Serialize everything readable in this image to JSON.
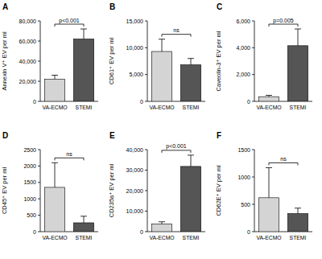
{
  "chart_data": [
    {
      "type": "bar",
      "title": "A",
      "y_label": "Annexin V⁺ EV per ml",
      "categories": [
        "VA-ECMO",
        "STEMI"
      ],
      "values": [
        22000,
        62000
      ],
      "errors": [
        4000,
        10000
      ],
      "colors": [
        "#d4d4d4",
        "#555555"
      ],
      "ylim": [
        0,
        80000
      ],
      "yticks": [
        0,
        {
          "value": 20000,
          "label": "20,000"
        },
        {
          "value": 40000,
          "label": "40,000"
        },
        {
          "value": 60000,
          "label": "60,000"
        },
        {
          "value": 80000,
          "label": "80,000"
        }
      ],
      "annotation": "p<0.001"
    },
    {
      "type": "bar",
      "title": "B",
      "y_label": "CD61⁺ EV per ml",
      "categories": [
        "VA-ECMO",
        "STEMI"
      ],
      "values": [
        9300,
        6800
      ],
      "errors": [
        2300,
        1200
      ],
      "colors": [
        "#d4d4d4",
        "#555555"
      ],
      "ylim": [
        0,
        15000
      ],
      "yticks": [
        0,
        {
          "value": 5000,
          "label": "5,000"
        },
        {
          "value": 10000,
          "label": "10,000"
        },
        {
          "value": 15000,
          "label": "15,000"
        }
      ],
      "annotation": "ns"
    },
    {
      "type": "bar",
      "title": "C",
      "y_label": "Caveolin-3⁺ EV per ml",
      "categories": [
        "VA-ECMO",
        "STEMI"
      ],
      "values": [
        350,
        4150
      ],
      "errors": [
        100,
        1250
      ],
      "colors": [
        "#d4d4d4",
        "#555555"
      ],
      "ylim": [
        0,
        6000
      ],
      "yticks": [
        0,
        {
          "value": 2000,
          "label": "2,000"
        },
        {
          "value": 4000,
          "label": "4,000"
        },
        {
          "value": 6000,
          "label": "6,000"
        }
      ],
      "annotation": "p=0.005"
    },
    {
      "type": "bar",
      "title": "D",
      "y_label": "CD45⁺ EV per ml",
      "categories": [
        "VA-ECMO",
        "STEMI"
      ],
      "values": [
        1350,
        270
      ],
      "errors": [
        750,
        200
      ],
      "colors": [
        "#d4d4d4",
        "#555555"
      ],
      "ylim": [
        0,
        2500
      ],
      "yticks": [
        0,
        500,
        1000,
        1500,
        2000,
        2500
      ],
      "annotation": "ns"
    },
    {
      "type": "bar",
      "title": "E",
      "y_label": "CD235a⁺ EV per ml",
      "categories": [
        "VA-ECMO",
        "STEMI"
      ],
      "values": [
        3800,
        31800
      ],
      "errors": [
        1000,
        5500
      ],
      "colors": [
        "#d4d4d4",
        "#555555"
      ],
      "ylim": [
        0,
        40000
      ],
      "yticks": [
        0,
        {
          "value": 10000,
          "label": "10,000"
        },
        {
          "value": 20000,
          "label": "20,000"
        },
        {
          "value": 30000,
          "label": "30,000"
        },
        {
          "value": 40000,
          "label": "40,000"
        }
      ],
      "annotation": "p<0.001"
    },
    {
      "type": "bar",
      "title": "F",
      "y_label": "CD62E⁺ EV per ml",
      "categories": [
        "VA-ECMO",
        "STEMI"
      ],
      "values": [
        620,
        330
      ],
      "errors": [
        550,
        100
      ],
      "colors": [
        "#d4d4d4",
        "#555555"
      ],
      "ylim": [
        0,
        1500
      ],
      "yticks": [
        0,
        500,
        1000,
        1500
      ],
      "annotation": "ns"
    }
  ]
}
